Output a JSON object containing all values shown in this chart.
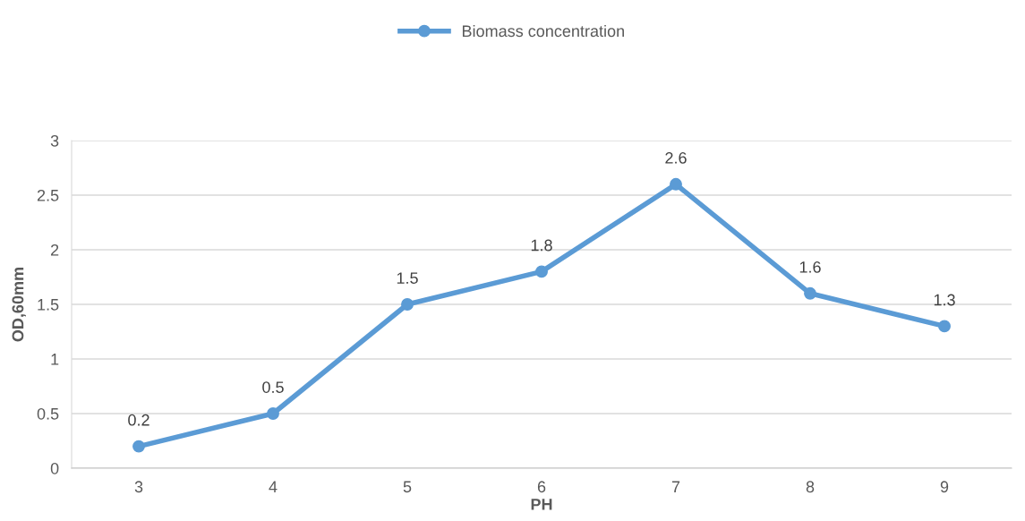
{
  "chart_data": {
    "type": "line",
    "xlabel": "PH",
    "ylabel": "OD,60mm",
    "categories": [
      "3",
      "4",
      "5",
      "6",
      "7",
      "8",
      "9"
    ],
    "series": [
      {
        "name": "Biomass concentration",
        "color": "#5b9bd5",
        "values": [
          0.2,
          0.5,
          1.5,
          1.8,
          2.6,
          1.6,
          1.3
        ]
      }
    ],
    "ylim": [
      0,
      3
    ],
    "yticks": [
      0,
      0.5,
      1,
      1.5,
      2,
      2.5,
      3
    ],
    "grid": "y",
    "legend": "top",
    "marker": "circle",
    "line_style": "solid",
    "data_labels": true
  }
}
